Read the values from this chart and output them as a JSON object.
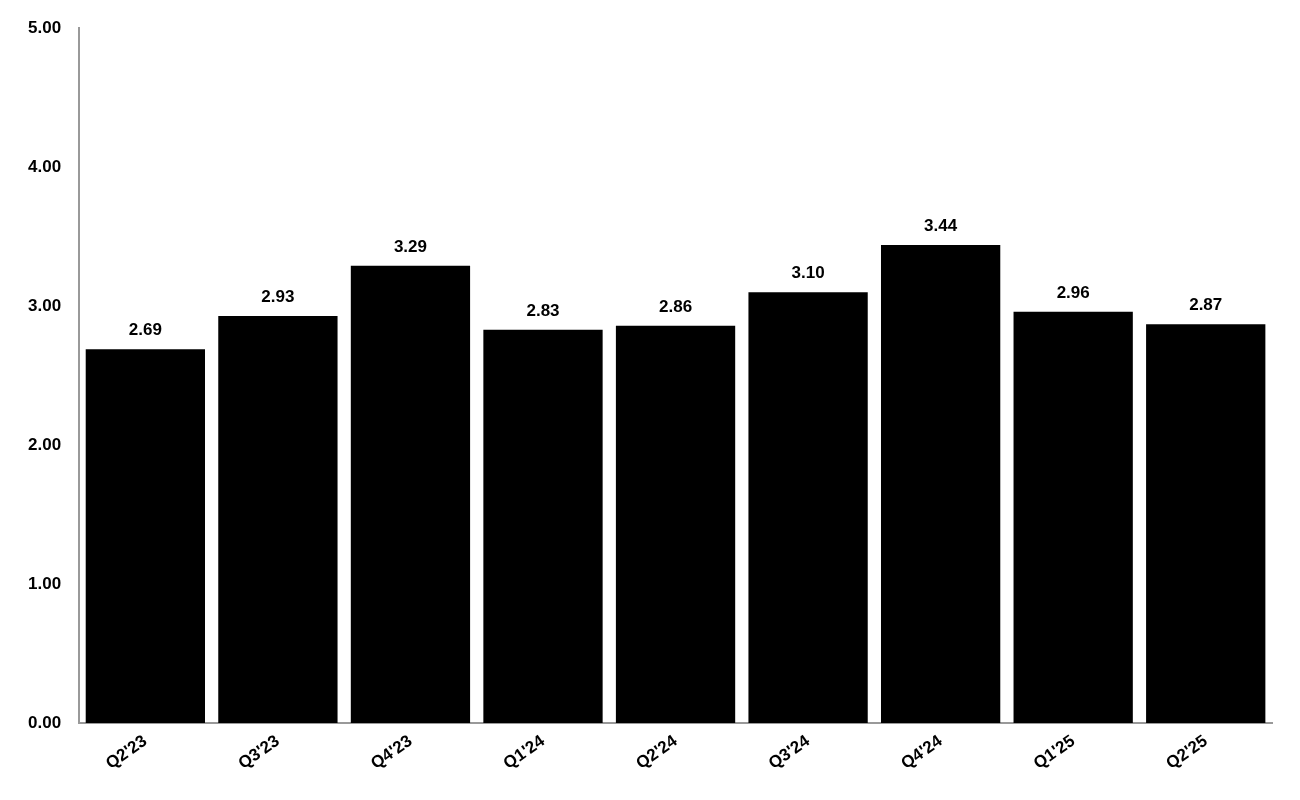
{
  "chart_data": {
    "type": "bar",
    "categories": [
      "Q2'23",
      "Q3'23",
      "Q4'23",
      "Q1'24",
      "Q2'24",
      "Q3'24",
      "Q4'24",
      "Q1'25",
      "Q2'25"
    ],
    "values": [
      2.69,
      2.93,
      3.29,
      2.83,
      2.86,
      3.1,
      3.44,
      2.96,
      2.87
    ],
    "value_labels": [
      "2.69",
      "2.93",
      "3.29",
      "2.83",
      "2.86",
      "3.10",
      "3.44",
      "2.96",
      "2.87"
    ],
    "color": "#000000",
    "ylim": [
      0,
      5
    ],
    "yticks": [
      {
        "value": 0,
        "label": "0.00"
      },
      {
        "value": 1,
        "label": "1.00"
      },
      {
        "value": 2,
        "label": "2.00"
      },
      {
        "value": 3,
        "label": "3.00"
      },
      {
        "value": 4,
        "label": "4.00"
      },
      {
        "value": 5,
        "label": "5.00"
      }
    ],
    "grid": false,
    "legend": false
  }
}
